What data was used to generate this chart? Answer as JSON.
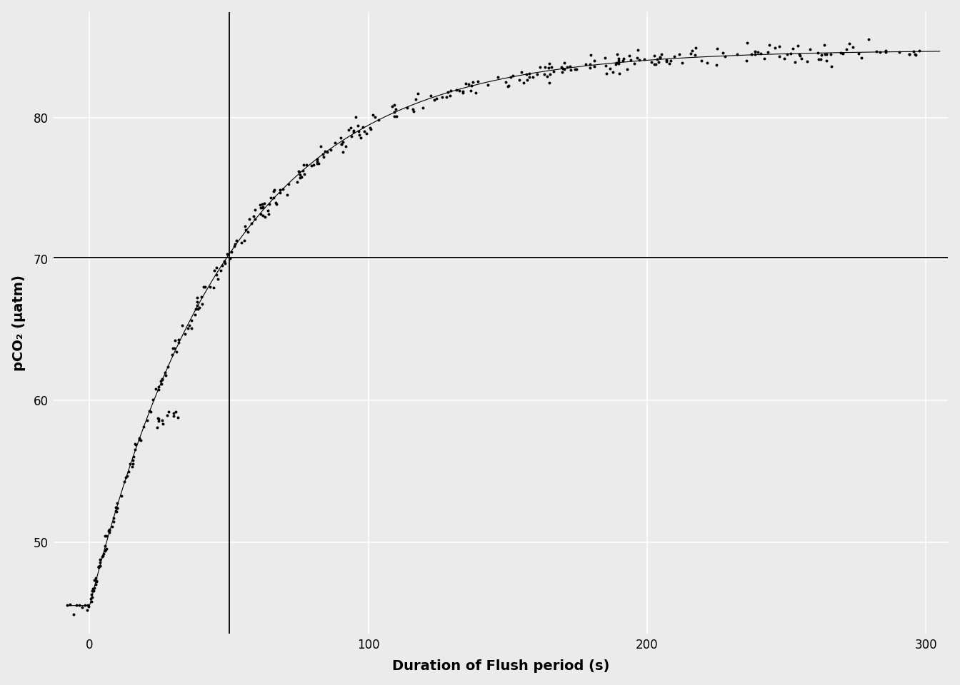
{
  "title": "",
  "xlabel": "Duration of Flush period (s)",
  "ylabel": "pCO₂ (μatm)",
  "xlim": [
    -13,
    308
  ],
  "ylim": [
    43.5,
    87.5
  ],
  "xticks": [
    0,
    100,
    200,
    300
  ],
  "yticks": [
    50,
    60,
    70,
    80
  ],
  "bg_color": "#EBEBEB",
  "grid_color": "#FFFFFF",
  "vline_x": 50,
  "hline_y": 70.1,
  "fit_params": {
    "pco2_start": 45.5,
    "pco2_final": 84.8,
    "tau": 50
  },
  "scatter_color": "#000000",
  "line_color": "#000000",
  "scatter_size": 8,
  "scatter_alpha": 1.0,
  "line_width": 0.8
}
